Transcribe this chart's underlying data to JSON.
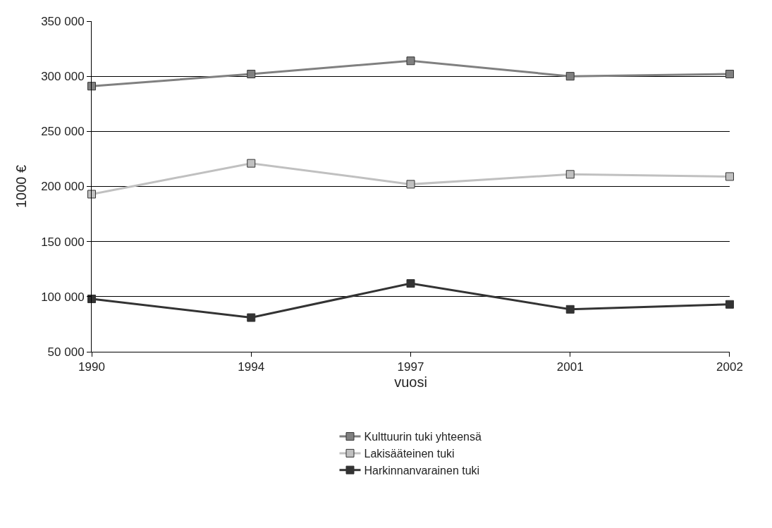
{
  "chart_data": {
    "type": "line",
    "xlabel": "vuosi",
    "ylabel": "1000 €",
    "categories": [
      "1990",
      "1994",
      "1997",
      "2001",
      "2002"
    ],
    "series": [
      {
        "name": "Kulttuurin tuki yhteensä",
        "color": "#808080",
        "values": [
          291000,
          302000,
          314000,
          300000,
          302000
        ]
      },
      {
        "name": "Lakisääteinen tuki",
        "color": "#c0c0c0",
        "values": [
          193000,
          221000,
          202000,
          211000,
          209000
        ]
      },
      {
        "name": "Harkinnanvarainen tuki",
        "color": "#333333",
        "values": [
          98000,
          81000,
          112000,
          88500,
          93000
        ]
      }
    ],
    "ylim": [
      50000,
      350000
    ],
    "yticks": [
      {
        "value": 50000,
        "label": "50 000"
      },
      {
        "value": 100000,
        "label": "100 000"
      },
      {
        "value": 150000,
        "label": "150 000"
      },
      {
        "value": 200000,
        "label": "200 000"
      },
      {
        "value": 250000,
        "label": "250 000"
      },
      {
        "value": 300000,
        "label": "300 000"
      },
      {
        "value": 350000,
        "label": "350 000"
      }
    ],
    "grid": "y",
    "legend": "bottom",
    "marker": "square",
    "line_style": "solid"
  }
}
